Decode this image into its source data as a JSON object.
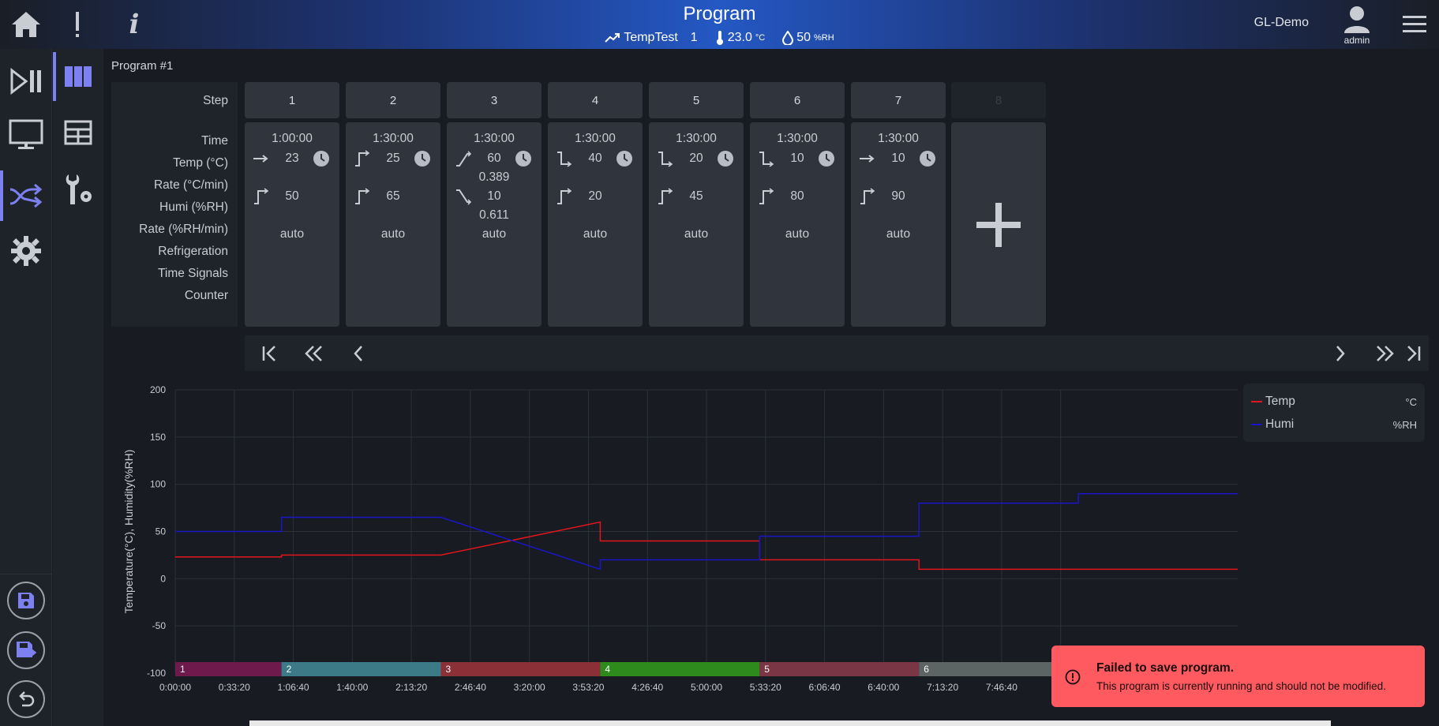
{
  "header": {
    "title": "Program",
    "program_name": "TempTest",
    "program_count": "1",
    "temperature": "23.0",
    "temperature_unit": "°C",
    "humidity": "50",
    "humidity_unit": "%RH",
    "user": "GL-Demo",
    "role": "admin"
  },
  "program": {
    "label": "Program #1",
    "row_labels": [
      "Step",
      "Time",
      "Temp (°C)",
      "Rate (°C/min)",
      "Humi (%RH)",
      "Rate (%RH/min)",
      "Refrigeration",
      "Time Signals",
      "Counter"
    ],
    "steps": [
      {
        "num": "1",
        "time": "1:00:00",
        "temp": "23",
        "temp_mode": "flat",
        "temp_rate": "",
        "humi": "50",
        "humi_mode": "step-up",
        "humi_rate": "",
        "refrigeration": "auto"
      },
      {
        "num": "2",
        "time": "1:30:00",
        "temp": "25",
        "temp_mode": "step-up",
        "temp_rate": "",
        "humi": "65",
        "humi_mode": "step-up",
        "humi_rate": "",
        "refrigeration": "auto"
      },
      {
        "num": "3",
        "time": "1:30:00",
        "temp": "60",
        "temp_mode": "ramp-up",
        "temp_rate": "0.389",
        "humi": "10",
        "humi_mode": "ramp-down",
        "humi_rate": "0.611",
        "refrigeration": "auto"
      },
      {
        "num": "4",
        "time": "1:30:00",
        "temp": "40",
        "temp_mode": "step-down",
        "temp_rate": "",
        "humi": "20",
        "humi_mode": "step-up",
        "humi_rate": "",
        "refrigeration": "auto"
      },
      {
        "num": "5",
        "time": "1:30:00",
        "temp": "20",
        "temp_mode": "step-down",
        "temp_rate": "",
        "humi": "45",
        "humi_mode": "step-up",
        "humi_rate": "",
        "refrigeration": "auto"
      },
      {
        "num": "6",
        "time": "1:30:00",
        "temp": "10",
        "temp_mode": "step-down",
        "temp_rate": "",
        "humi": "80",
        "humi_mode": "step-up",
        "humi_rate": "",
        "refrigeration": "auto"
      },
      {
        "num": "7",
        "time": "1:30:00",
        "temp": "10",
        "temp_mode": "flat",
        "temp_rate": "",
        "humi": "90",
        "humi_mode": "step-up",
        "humi_rate": "",
        "refrigeration": "auto"
      }
    ],
    "next_step_num": "8"
  },
  "toast": {
    "title": "Failed to save program.",
    "message": "This program is currently running and should not be modified."
  },
  "colors": {
    "accent": "#7d80f0",
    "temp": "#e0161c",
    "humi": "#1a16c8",
    "toast_bg": "#ff5a5f"
  },
  "chart_data": {
    "type": "line",
    "ylabel": "Temperature(°C), Humidity(%RH)",
    "ylim": [
      -100,
      200
    ],
    "yticks": [
      "200",
      "150",
      "100",
      "50",
      "0",
      "-50",
      "-100"
    ],
    "xticks": [
      "0:00:00",
      "0:33:20",
      "1:06:40",
      "1:40:00",
      "2:13:20",
      "2:46:40",
      "3:20:00",
      "3:53:20",
      "4:26:40",
      "5:00:00",
      "5:33:20",
      "6:06:40",
      "6:40:00",
      "7:13:20",
      "7:46:40",
      "8"
    ],
    "x_unit": "hours",
    "series": [
      {
        "name": "Temp",
        "unit": "°C",
        "color": "#e0161c",
        "x": [
          0,
          1,
          1,
          2.5,
          4,
          4,
          5.5,
          5.5,
          7,
          7,
          10
        ],
        "y": [
          23,
          23,
          25,
          25,
          60,
          40,
          40,
          20,
          20,
          10,
          10
        ]
      },
      {
        "name": "Humi",
        "unit": "%RH",
        "color": "#1a16c8",
        "x": [
          0,
          1,
          1,
          2.5,
          4,
          4,
          5.5,
          5.5,
          7,
          7,
          8.5,
          8.5,
          10
        ],
        "y": [
          50,
          50,
          65,
          65,
          10,
          20,
          20,
          45,
          45,
          80,
          80,
          90,
          90
        ]
      }
    ],
    "step_bands": [
      {
        "label": "1",
        "start": 0,
        "end": 1,
        "color": "#6e1a4c"
      },
      {
        "label": "2",
        "start": 1,
        "end": 2.5,
        "color": "#3b7a86"
      },
      {
        "label": "3",
        "start": 2.5,
        "end": 4,
        "color": "#8a3036"
      },
      {
        "label": "4",
        "start": 4,
        "end": 5.5,
        "color": "#2f8a1e"
      },
      {
        "label": "5",
        "start": 5.5,
        "end": 7,
        "color": "#7a3644"
      },
      {
        "label": "6",
        "start": 7,
        "end": 8.5,
        "color": "#5d6464"
      },
      {
        "label": "",
        "start": 8.5,
        "end": 10,
        "color": "#3a3f48"
      }
    ],
    "legend_position": "top-right",
    "grid": true
  }
}
